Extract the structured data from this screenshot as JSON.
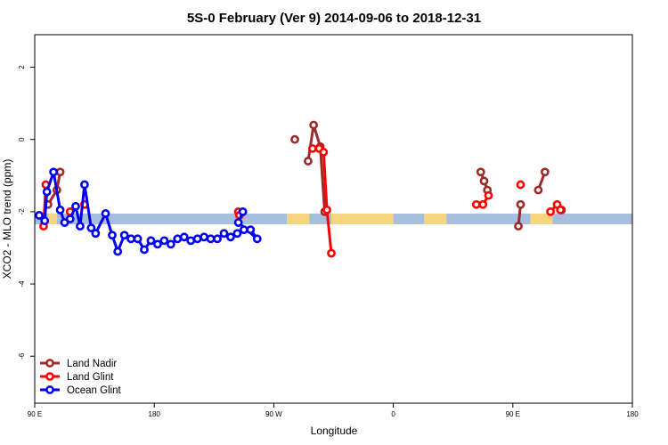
{
  "chart_data": {
    "type": "line",
    "title": "5S-0 February (Ver 9)   2014-09-06 to 2018-12-31",
    "xlabel": "Longitude",
    "ylabel": "XCO2 - MLO trend (ppm)",
    "xlim": [
      -90,
      180
    ],
    "ylim": [
      -7.3,
      2.9
    ],
    "x_ticks": [
      {
        "value": -90,
        "label": "90 E"
      },
      {
        "value": -36,
        "label": "180"
      },
      {
        "value": 18,
        "label": "90 W"
      },
      {
        "value": 72,
        "label": "0"
      },
      {
        "value": 126,
        "label": "90 E"
      },
      {
        "value": 180,
        "label": "180"
      }
    ],
    "y_ticks": [
      2,
      0,
      -2,
      -4,
      -6
    ],
    "legend_position": "bottom-left",
    "band": {
      "y": -2.2,
      "segments": [
        {
          "x0": -90,
          "x1": -84,
          "color": "#a7bedd"
        },
        {
          "x0": -84,
          "x1": -80,
          "color": "#f7d580"
        },
        {
          "x0": -80,
          "x1": 24,
          "color": "#a7bedd"
        },
        {
          "x0": 24,
          "x1": 34,
          "color": "#f7d580"
        },
        {
          "x0": 34,
          "x1": 44,
          "color": "#a7bedd"
        },
        {
          "x0": 44,
          "x1": 72,
          "color": "#f7d580"
        },
        {
          "x0": 72,
          "x1": 86,
          "color": "#a7bedd"
        },
        {
          "x0": 86,
          "x1": 96,
          "color": "#f7d580"
        },
        {
          "x0": 96,
          "x1": 134,
          "color": "#a7bedd"
        },
        {
          "x0": 134,
          "x1": 144,
          "color": "#f7d580"
        },
        {
          "x0": 144,
          "x1": 180,
          "color": "#a7bedd"
        }
      ]
    },
    "series": [
      {
        "name": "Land Nadir",
        "color": "#9e2a2a",
        "segments": [
          [
            [
              -84.0,
              -1.8
            ],
            [
              -80.0,
              -1.4
            ],
            [
              -78.5,
              -0.9
            ]
          ],
          [
            [
              27.5,
              0.0
            ]
          ],
          [
            [
              33.5,
              -0.6
            ],
            [
              36.0,
              0.4
            ],
            [
              39.0,
              -0.2
            ],
            [
              41.0,
              -2.0
            ]
          ],
          [
            [
              111.5,
              -0.9
            ],
            [
              113.0,
              -1.15
            ],
            [
              114.5,
              -1.4
            ]
          ],
          [
            [
              128.5,
              -2.4
            ],
            [
              129.5,
              -1.8
            ]
          ],
          [
            [
              137.5,
              -1.4
            ],
            [
              140.5,
              -0.9
            ]
          ],
          [
            [
              148.0,
              -1.95
            ]
          ]
        ]
      },
      {
        "name": "Land Glint",
        "color": "#ff0000",
        "segments": [
          [
            [
              -86.0,
              -2.4
            ],
            [
              -85.0,
              -1.25
            ]
          ],
          [
            [
              -74.0,
              -2.0
            ]
          ],
          [
            [
              -67.5,
              -1.8
            ]
          ],
          [
            [
              2.0,
              -2.0
            ],
            [
              2.5,
              -2.1
            ]
          ],
          [
            [
              35.5,
              -0.25
            ],
            [
              38.5,
              -0.25
            ],
            [
              40.5,
              -0.35
            ],
            [
              42.0,
              -1.95
            ],
            [
              44.0,
              -3.15
            ]
          ],
          [
            [
              109.5,
              -1.8
            ]
          ],
          [
            [
              112.5,
              -1.8
            ],
            [
              115.0,
              -1.55
            ]
          ],
          [
            [
              129.5,
              -1.25
            ]
          ],
          [
            [
              143.0,
              -2.0
            ],
            [
              146.0,
              -1.8
            ],
            [
              147.5,
              -1.95
            ]
          ]
        ]
      },
      {
        "name": "Ocean Glint",
        "color": "#0000ee",
        "segments": [
          [
            [
              -88.0,
              -2.1
            ],
            [
              -85.5,
              -2.25
            ],
            [
              -84.5,
              -1.45
            ],
            [
              -81.5,
              -0.9
            ],
            [
              -78.5,
              -1.95
            ],
            [
              -76.5,
              -2.3
            ],
            [
              -74.0,
              -2.2
            ],
            [
              -71.5,
              -1.85
            ],
            [
              -69.5,
              -2.4
            ],
            [
              -67.5,
              -1.25
            ],
            [
              -64.5,
              -2.45
            ],
            [
              -62.5,
              -2.6
            ],
            [
              -58.0,
              -2.05
            ],
            [
              -55.0,
              -2.65
            ],
            [
              -52.5,
              -3.1
            ],
            [
              -49.5,
              -2.65
            ],
            [
              -46.5,
              -2.75
            ],
            [
              -43.5,
              -2.75
            ],
            [
              -40.5,
              -3.05
            ],
            [
              -37.5,
              -2.8
            ],
            [
              -34.5,
              -2.9
            ],
            [
              -31.5,
              -2.8
            ],
            [
              -28.5,
              -2.9
            ],
            [
              -25.5,
              -2.75
            ],
            [
              -22.5,
              -2.7
            ],
            [
              -19.5,
              -2.8
            ],
            [
              -16.5,
              -2.75
            ],
            [
              -13.5,
              -2.7
            ],
            [
              -10.5,
              -2.75
            ],
            [
              -7.5,
              -2.75
            ],
            [
              -4.5,
              -2.6
            ],
            [
              -1.5,
              -2.7
            ],
            [
              1.5,
              -2.6
            ],
            [
              4.5,
              -2.5
            ],
            [
              7.5,
              -2.5
            ],
            [
              10.5,
              -2.75
            ],
            [
              2.0,
              -2.3
            ],
            [
              4.0,
              -2.0
            ]
          ]
        ]
      }
    ]
  },
  "legend": [
    {
      "label": "Land Nadir",
      "color": "#9e2a2a"
    },
    {
      "label": "Land Glint",
      "color": "#ff0000"
    },
    {
      "label": "Ocean Glint",
      "color": "#0000ee"
    }
  ]
}
